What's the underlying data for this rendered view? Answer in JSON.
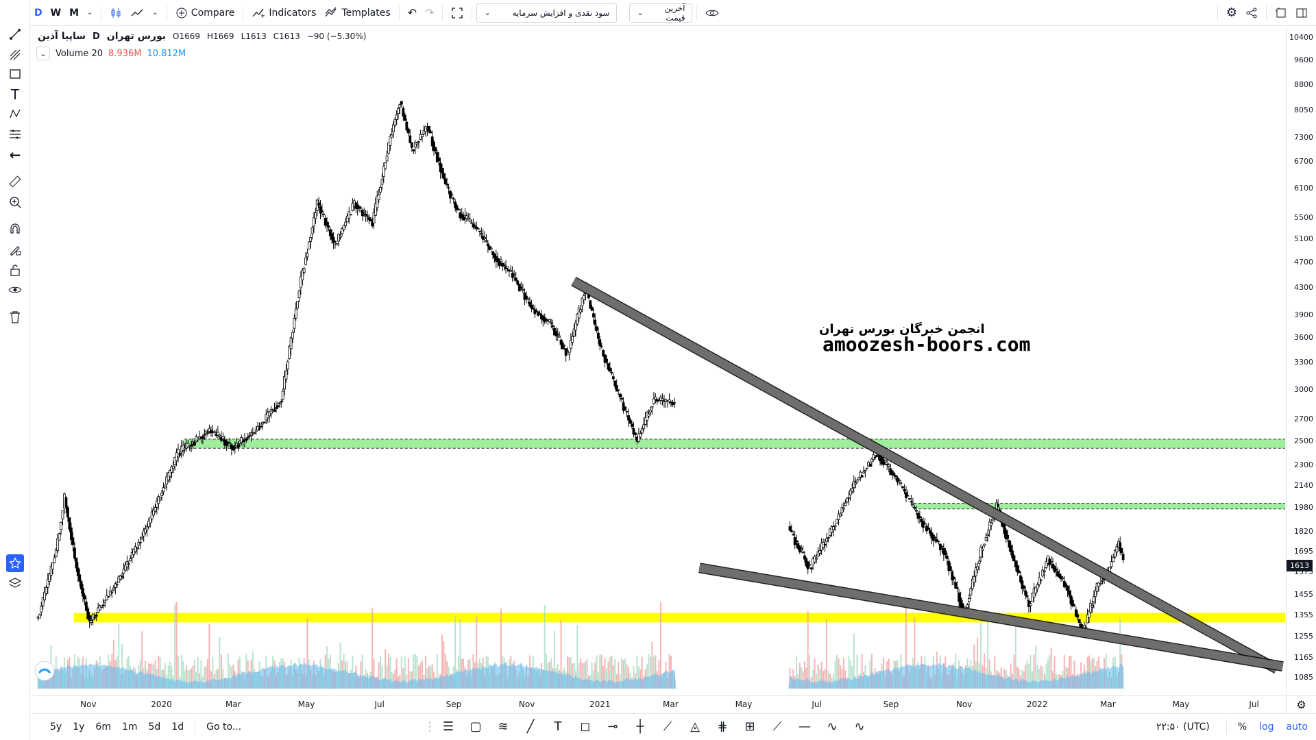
{
  "toolbar": {
    "intervals": [
      "D",
      "W",
      "M"
    ],
    "compare_label": "Compare",
    "indicators_label": "Indicators",
    "templates_label": "Templates",
    "indicator_select": "سود نقدی و افزایش سرمایه",
    "price_select": "آخرین قیمت"
  },
  "legend": {
    "symbol": "ساپیا آذین",
    "exchange": "بورس تهران",
    "interval": "D",
    "open": "O1669",
    "high": "H1669",
    "low": "L1613",
    "close": "C1613",
    "change": "−90 (−5.30%)"
  },
  "volume_legend": {
    "label": "Volume 20",
    "v1": "8.936M",
    "v2": "10.812M"
  },
  "watermark": {
    "title": "انجمن خبرگان بورس تهران",
    "url": "amoozesh-boors.com"
  },
  "price_tag": "1613",
  "bottom": {
    "ranges": [
      "5y",
      "1y",
      "6m",
      "1m",
      "5d",
      "1d"
    ],
    "goto": "Go to...",
    "clock": "۲۲:۵۰ (UTC)",
    "percent": "%",
    "log": "log",
    "auto": "auto"
  },
  "colors": {
    "zone_green": "#7ee87e",
    "zone_yellow": "#ffff00",
    "trendline": "#777777",
    "volume_area": "#5eb8f0",
    "accent": "#2962ff"
  },
  "chart_data": {
    "type": "candlestick",
    "log_scale": true,
    "ylim": [
      1020,
      10800
    ],
    "price_ticks": [
      10400,
      9600,
      8800,
      8050,
      7300,
      6700,
      6100,
      5500,
      5100,
      4700,
      4300,
      3900,
      3600,
      3300,
      3000,
      2700,
      2500,
      2300,
      2140,
      1980,
      1820,
      1695,
      1575,
      1455,
      1355,
      1255,
      1165,
      1085
    ],
    "time_ticks": [
      "Nov",
      "2020",
      "Mar",
      "May",
      "Jul",
      "Sep",
      "Nov",
      "2021",
      "Mar",
      "May",
      "Jul",
      "Sep",
      "Nov",
      "2022",
      "Mar",
      "May",
      "Jul"
    ],
    "price_path": [
      {
        "t": "2019-09-20",
        "p": 1340
      },
      {
        "t": "2019-10-05",
        "p": 1700
      },
      {
        "t": "2019-10-12",
        "p": 2050
      },
      {
        "t": "2019-10-22",
        "p": 1600
      },
      {
        "t": "2019-11-02",
        "p": 1320
      },
      {
        "t": "2019-11-25",
        "p": 1520
      },
      {
        "t": "2019-12-20",
        "p": 1850
      },
      {
        "t": "2020-01-15",
        "p": 2400
      },
      {
        "t": "2020-02-10",
        "p": 2600
      },
      {
        "t": "2020-03-01",
        "p": 2450
      },
      {
        "t": "2020-03-20",
        "p": 2600
      },
      {
        "t": "2020-04-10",
        "p": 2900
      },
      {
        "t": "2020-04-25",
        "p": 4300
      },
      {
        "t": "2020-05-10",
        "p": 5800
      },
      {
        "t": "2020-05-25",
        "p": 5000
      },
      {
        "t": "2020-06-10",
        "p": 5800
      },
      {
        "t": "2020-06-25",
        "p": 5400
      },
      {
        "t": "2020-07-10",
        "p": 7300
      },
      {
        "t": "2020-07-18",
        "p": 8300
      },
      {
        "t": "2020-07-28",
        "p": 7000
      },
      {
        "t": "2020-08-10",
        "p": 7600
      },
      {
        "t": "2020-08-25",
        "p": 6200
      },
      {
        "t": "2020-09-05",
        "p": 5600
      },
      {
        "t": "2020-09-20",
        "p": 5300
      },
      {
        "t": "2020-10-05",
        "p": 4800
      },
      {
        "t": "2020-10-20",
        "p": 4500
      },
      {
        "t": "2020-11-05",
        "p": 4000
      },
      {
        "t": "2020-11-20",
        "p": 3800
      },
      {
        "t": "2020-12-05",
        "p": 3400
      },
      {
        "t": "2020-12-20",
        "p": 4300
      },
      {
        "t": "2021-01-01",
        "p": 3500
      },
      {
        "t": "2021-01-15",
        "p": 3000
      },
      {
        "t": "2021-02-01",
        "p": 2500
      },
      {
        "t": "2021-02-15",
        "p": 2900
      },
      {
        "t": "2021-03-10",
        "p": 2850
      },
      {
        "t": "2021-04-01",
        "p": 2780
      },
      {
        "t": "2021-05-01",
        "p": 2700
      },
      {
        "t": "2021-06-10",
        "p": 1800
      },
      {
        "t": "2021-06-25",
        "p": 1600
      },
      {
        "t": "2021-07-15",
        "p": 1850
      },
      {
        "t": "2021-08-01",
        "p": 2150
      },
      {
        "t": "2021-08-20",
        "p": 2400
      },
      {
        "t": "2021-09-05",
        "p": 2200
      },
      {
        "t": "2021-09-25",
        "p": 1900
      },
      {
        "t": "2021-10-15",
        "p": 1700
      },
      {
        "t": "2021-11-01",
        "p": 1360
      },
      {
        "t": "2021-11-15",
        "p": 1700
      },
      {
        "t": "2021-11-28",
        "p": 2000
      },
      {
        "t": "2021-12-10",
        "p": 1700
      },
      {
        "t": "2021-12-25",
        "p": 1400
      },
      {
        "t": "2022-01-10",
        "p": 1650
      },
      {
        "t": "2022-01-25",
        "p": 1500
      },
      {
        "t": "2022-02-08",
        "p": 1270
      },
      {
        "t": "2022-02-20",
        "p": 1500
      },
      {
        "t": "2022-03-01",
        "p": 1580
      },
      {
        "t": "2022-03-10",
        "p": 1750
      },
      {
        "t": "2022-03-15",
        "p": 1613
      }
    ],
    "zones": [
      {
        "name": "green-zone-upper",
        "from": "2020-01-20",
        "to": "end",
        "low": 2440,
        "high": 2520
      },
      {
        "name": "green-zone-lower",
        "from": "2021-09-20",
        "to": "end",
        "low": 1970,
        "high": 2010
      },
      {
        "name": "yellow-zone",
        "from": "2019-10-20",
        "to": "end",
        "low": 1320,
        "high": 1365
      }
    ],
    "trendlines": [
      {
        "name": "upper-trendline",
        "x1": "2020-12-10",
        "y1": 4400,
        "x2": "2022-07-20",
        "y2": 1120
      },
      {
        "name": "lower-trendline",
        "x1": "2021-03-25",
        "y1": 1600,
        "x2": "2022-07-25",
        "y2": 1130
      }
    ]
  }
}
